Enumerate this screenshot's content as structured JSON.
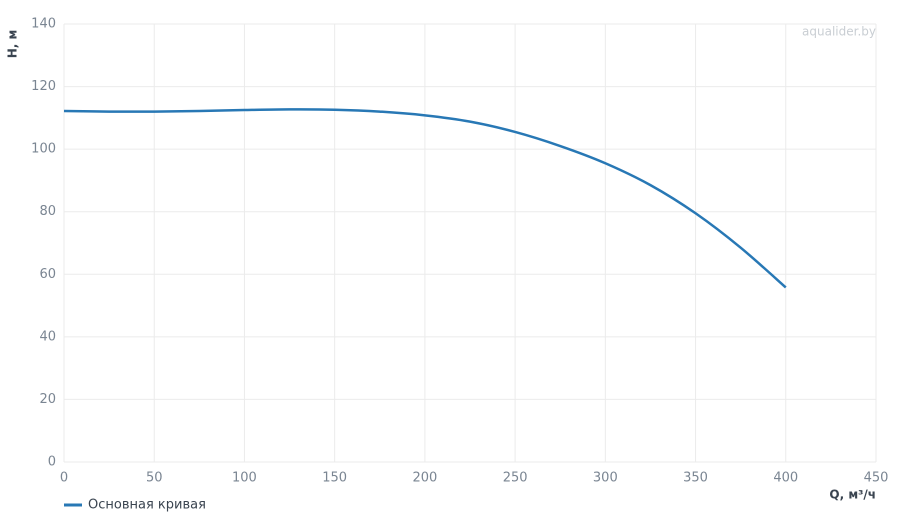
{
  "chart_data": {
    "type": "line",
    "watermark": "aqualider.by",
    "x_label": "Q, м³/ч",
    "y_label": "H, м",
    "x": [
      0,
      25,
      50,
      75,
      100,
      125,
      150,
      175,
      200,
      225,
      250,
      275,
      300,
      325,
      350,
      375,
      400
    ],
    "series": [
      {
        "name": "Основная кривая",
        "color": "#2878b5",
        "values": [
          112.2,
          112,
          112,
          112.2,
          112.5,
          112.7,
          112.6,
          112,
          110.8,
          108.8,
          105.5,
          101,
          95.5,
          88.5,
          79.5,
          68.5,
          55.8
        ]
      }
    ],
    "xlim": [
      0,
      450
    ],
    "xticks": [
      0,
      50,
      100,
      150,
      200,
      250,
      300,
      350,
      400,
      450
    ],
    "ylim": [
      0,
      140
    ],
    "yticks": [
      0,
      20,
      40,
      60,
      80,
      100,
      120,
      140
    ],
    "grid": true,
    "legend": "bottom-left"
  }
}
